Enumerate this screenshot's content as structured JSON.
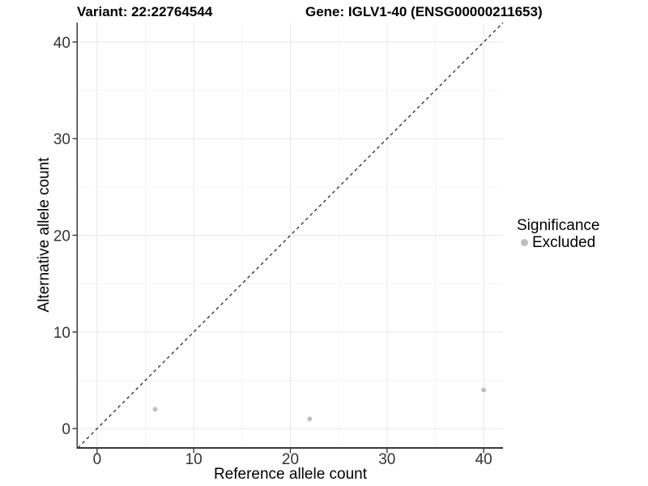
{
  "header": {
    "variant_title": "Variant: 22:22764544",
    "gene_title": "Gene: IGLV1-40 (ENSG00000211653)"
  },
  "chart_data": {
    "type": "scatter",
    "title": "Variant: 22:22764544 / Gene: IGLV1-40 (ENSG00000211653)",
    "xlabel": "Reference allele count",
    "ylabel": "Alternative allele count",
    "xlim": [
      -2,
      42
    ],
    "ylim": [
      -2,
      42
    ],
    "x_ticks": [
      0,
      10,
      20,
      30,
      40
    ],
    "y_ticks": [
      0,
      10,
      20,
      30,
      40
    ],
    "x_minor_ticks": [
      5,
      15,
      25,
      35
    ],
    "y_minor_ticks": [
      5,
      15,
      25,
      35
    ],
    "grid": "major and minor gridlines on white background",
    "identity_line": {
      "slope": 1,
      "intercept": 0,
      "style": "dashed"
    },
    "series": [
      {
        "name": "Excluded",
        "color": "#bebebe",
        "marker": "circle",
        "points": [
          {
            "x": 6,
            "y": 2
          },
          {
            "x": 22,
            "y": 1
          },
          {
            "x": 40,
            "y": 4
          }
        ]
      }
    ],
    "legend": {
      "title": "Significance",
      "position": "right",
      "items": [
        {
          "label": "Excluded",
          "color": "#bebebe"
        }
      ]
    }
  },
  "colors": {
    "background": "#ffffff",
    "grid_major": "#e8e8e8",
    "grid_minor": "#f4f4f4",
    "axis_line": "#3a3a3a",
    "tick_text": "#333333",
    "dashed_line": "#1a1a1a"
  }
}
